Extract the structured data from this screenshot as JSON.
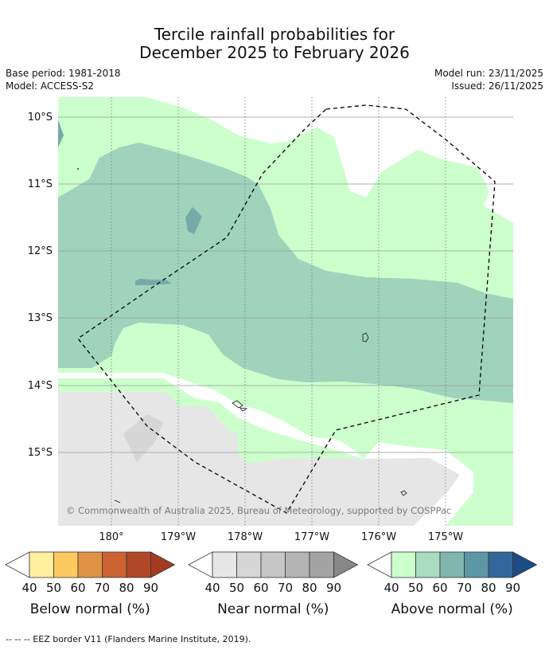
{
  "title": {
    "line1": "Tercile rainfall probabilities for",
    "line2": "December 2025 to February 2026"
  },
  "meta": {
    "base_period": "Base period: 1981-2018",
    "model": "Model: ACCESS-S2",
    "model_run": "Model run: 23/11/2025",
    "issued": "Issued: 26/11/2025"
  },
  "map": {
    "lat_labels": [
      "10°S",
      "11°S",
      "12°S",
      "13°S",
      "14°S",
      "15°S"
    ],
    "lon_labels": [
      "180°",
      "179°W",
      "178°W",
      "177°W",
      "176°W",
      "175°W"
    ],
    "copyright": "© Commonwealth of Australia 2025, Bureau of Meteorology, supported by COSPPac",
    "colors": {
      "above_40": "#ccffcc",
      "above_50": "#9fd3bc",
      "above_60": "#76aaa9",
      "near_40": "#e6e6e6",
      "near_50": "#d6d6d6"
    }
  },
  "legends": [
    {
      "name": "Below normal (%)",
      "ticks": [
        "40",
        "50",
        "60",
        "70",
        "80",
        "90"
      ],
      "colors": [
        "#fff0a0",
        "#fdca60",
        "#e19345",
        "#cc6232",
        "#b04726",
        "#a33b24"
      ]
    },
    {
      "name": "Near normal (%)",
      "ticks": [
        "40",
        "50",
        "60",
        "70",
        "80",
        "90"
      ],
      "colors": [
        "#e6e6e6",
        "#d6d6d6",
        "#c6c6c6",
        "#b4b4b4",
        "#a3a3a3",
        "#888888"
      ]
    },
    {
      "name": "Above normal (%)",
      "ticks": [
        "40",
        "50",
        "60",
        "70",
        "80",
        "90"
      ],
      "colors": [
        "#ccffcc",
        "#a8ddbf",
        "#80b6ae",
        "#5c97a5",
        "#33679b",
        "#1b4c86"
      ]
    }
  ],
  "footnote": "--  --  -- EEZ border V11 (Flanders Marine Institute, 2019)."
}
